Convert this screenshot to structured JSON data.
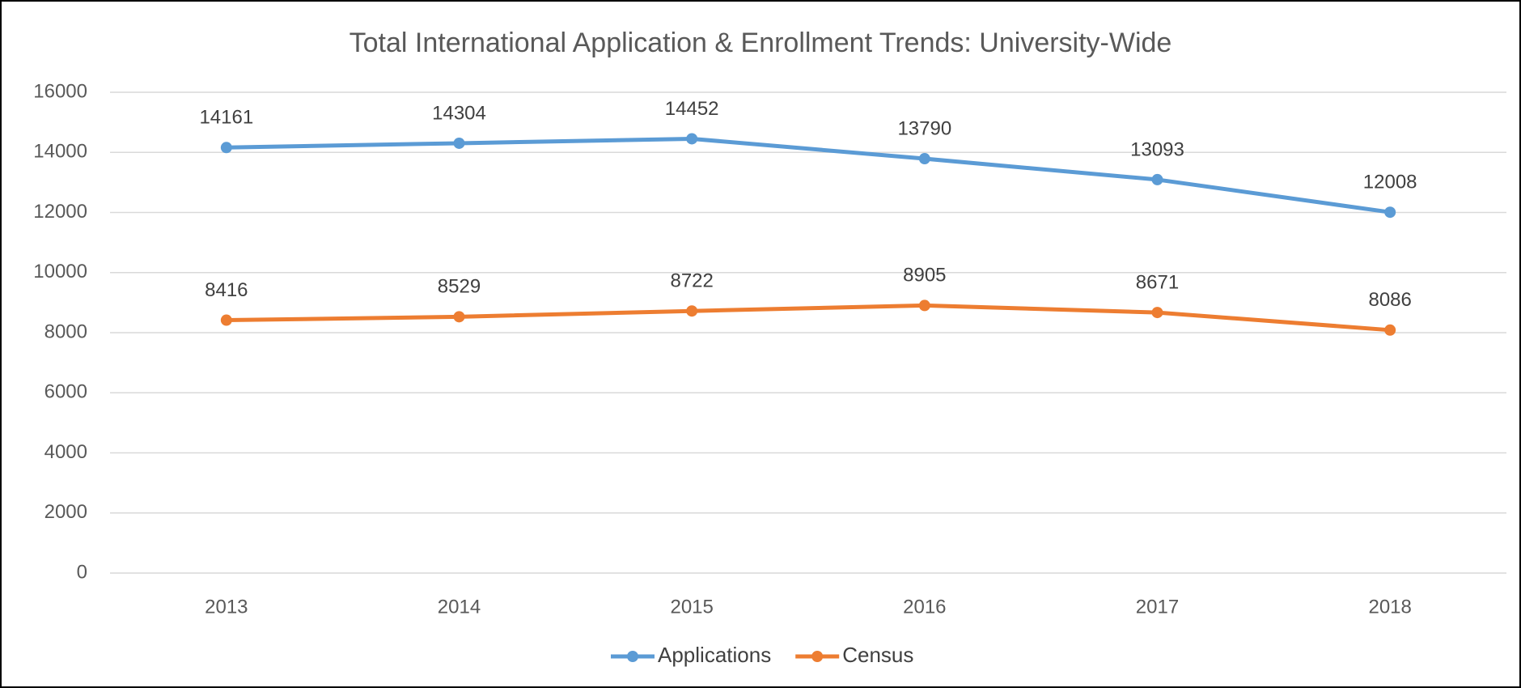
{
  "chart_data": {
    "type": "line",
    "title": "Total International Application & Enrollment Trends: University-Wide",
    "categories": [
      "2013",
      "2014",
      "2015",
      "2016",
      "2017",
      "2018"
    ],
    "series": [
      {
        "name": "Applications",
        "color": "#5b9bd5",
        "values": [
          14161,
          14304,
          14452,
          13790,
          13093,
          12008
        ]
      },
      {
        "name": "Census",
        "color": "#ed7d31",
        "values": [
          8416,
          8529,
          8722,
          8905,
          8671,
          8086
        ]
      }
    ],
    "ylim": [
      0,
      16000
    ],
    "yticks": [
      0,
      2000,
      4000,
      6000,
      8000,
      10000,
      12000,
      14000,
      16000
    ],
    "grid": true,
    "legend": "bottom"
  }
}
